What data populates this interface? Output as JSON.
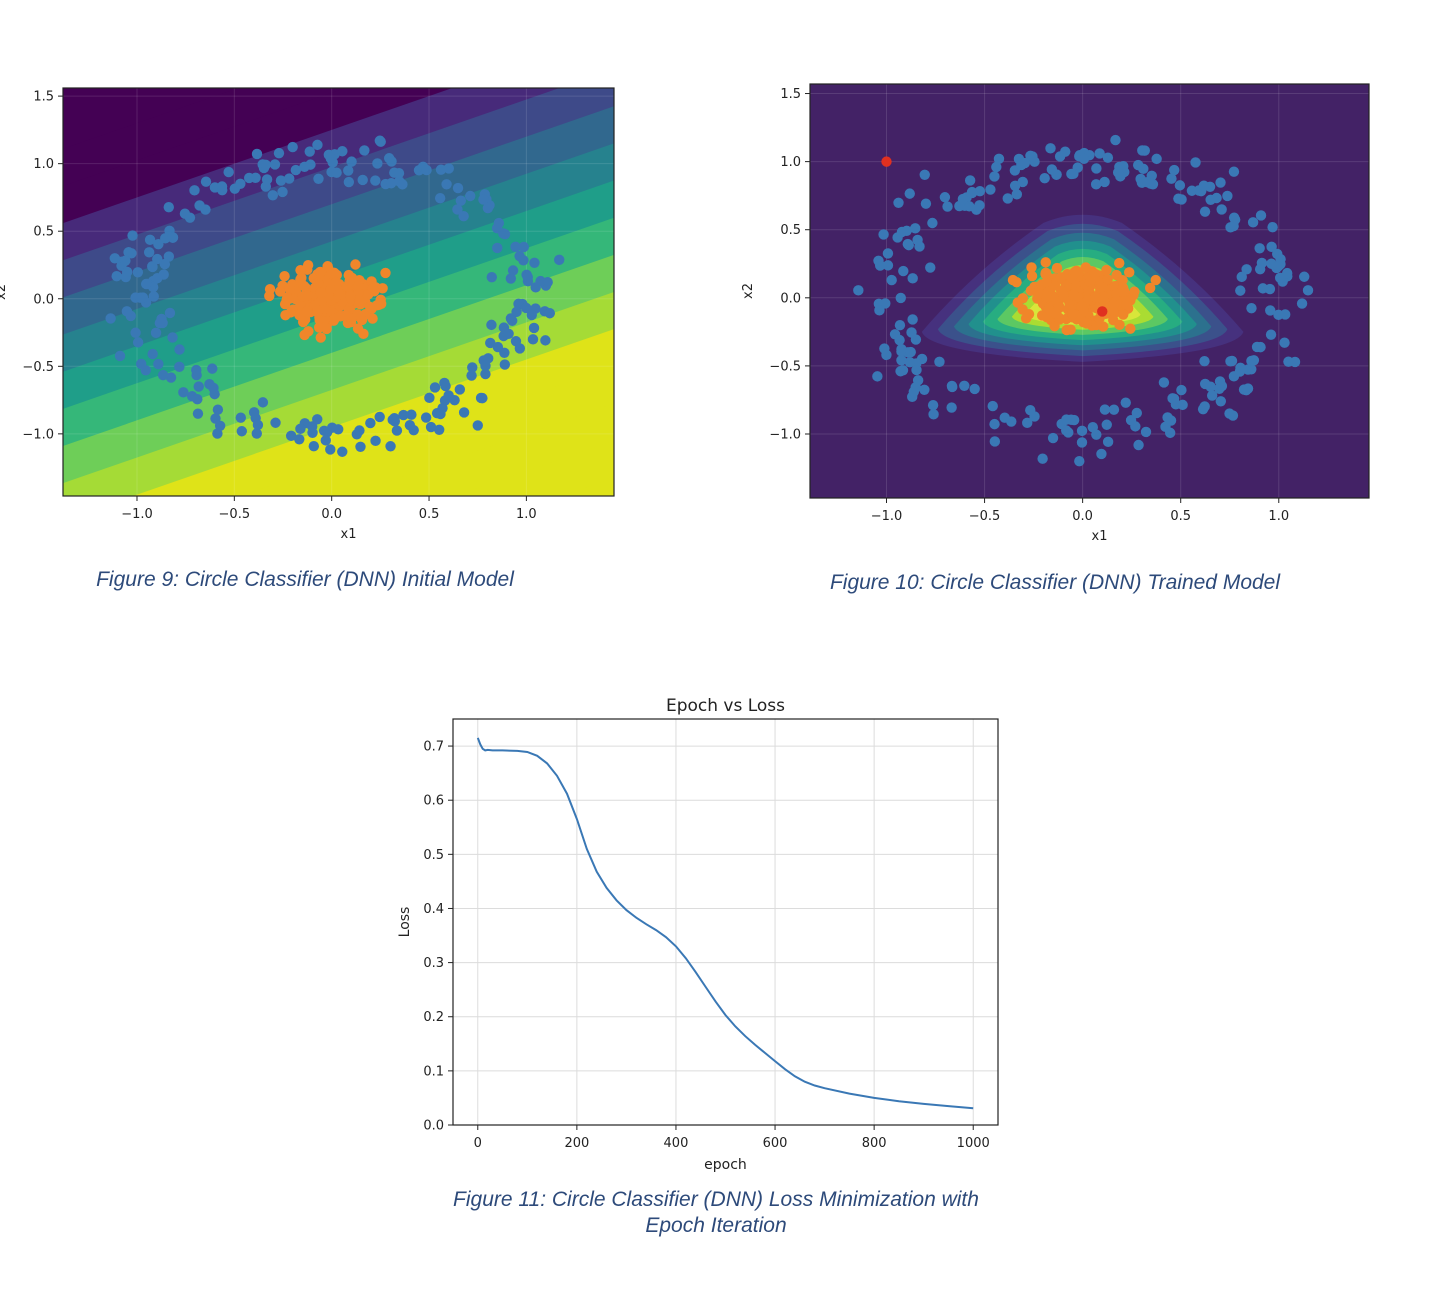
{
  "captions": {
    "fig9": "Figure 9: Circle Classifier (DNN) Initial Model",
    "fig10": "Figure 10: Circle Classifier (DNN) Trained Model",
    "fig11_line1": "Figure 11: Circle Classifier (DNN) Loss Minimization with",
    "fig11_line2": "Epoch Iteration"
  },
  "chart_data": [
    {
      "type": "scatter",
      "title": "",
      "xlabel": "x1",
      "ylabel": "x2",
      "xlim": [
        -1.38,
        1.45
      ],
      "ylim": [
        -1.46,
        1.56
      ],
      "xticks": [
        "−1.0",
        "−0.5",
        "0.0",
        "0.5",
        "1.0"
      ],
      "xtick_values": [
        -1.0,
        -0.5,
        0.0,
        0.5,
        1.0
      ],
      "yticks": [
        "1.5",
        "1.0",
        "0.5",
        "0.0",
        "−0.5",
        "−1.0"
      ],
      "ytick_values": [
        1.5,
        1.0,
        0.5,
        0.0,
        -0.5,
        -1.0
      ],
      "background": "linear decision-boundary contour bands (viridis), increasing toward the lower right",
      "contour_colors": [
        "#440154",
        "#46317e",
        "#3b518b",
        "#2c718e",
        "#21908d",
        "#27ad81",
        "#5cc863",
        "#aadc32",
        "#fde725"
      ],
      "series": [
        {
          "class": 0,
          "description": "outer ring, radius about 1.0, about 250 points",
          "color": "#3a78b5"
        },
        {
          "class": 1,
          "description": "inner cluster, radius about 0.3, about 250 points",
          "color": "#f0862a"
        }
      ]
    },
    {
      "type": "scatter",
      "title": "",
      "xlabel": "x1",
      "ylabel": "x2",
      "xlim": [
        -1.39,
        1.46
      ],
      "ylim": [
        -1.47,
        1.57
      ],
      "xticks": [
        "−1.0",
        "−0.5",
        "0.0",
        "0.5",
        "1.0"
      ],
      "xtick_values": [
        -1.0,
        -0.5,
        0.0,
        0.5,
        1.0
      ],
      "yticks": [
        "1.5",
        "1.0",
        "0.5",
        "0.0",
        "−0.5",
        "−1.0"
      ],
      "ytick_values": [
        1.5,
        1.0,
        0.5,
        0.0,
        -0.5,
        -1.0
      ],
      "background": "rounded-triangle decision region centered near the origin (viridis contours)",
      "contour_colors": [
        "#440154",
        "#46317e",
        "#3b518b",
        "#2c718e",
        "#21908d",
        "#27ad81",
        "#5cc863",
        "#aadc32",
        "#fde725"
      ],
      "highlighted_points": [
        {
          "x": -1.0,
          "y": 1.0,
          "color": "#e03020"
        },
        {
          "x": 0.1,
          "y": -0.1,
          "color": "#e03020"
        }
      ],
      "series": [
        {
          "class": 0,
          "description": "outer ring, radius about 1.0, about 250 points",
          "color": "#3a78b5"
        },
        {
          "class": 1,
          "description": "inner cluster, radius about 0.3, about 250 points",
          "color": "#f0862a"
        }
      ]
    },
    {
      "type": "line",
      "title": "Epoch vs Loss",
      "xlabel": "epoch",
      "ylabel": "Loss",
      "xlim": [
        -50,
        1050
      ],
      "ylim": [
        0,
        0.75
      ],
      "xticks": [
        0,
        200,
        400,
        600,
        800,
        1000
      ],
      "yticks": [
        0.0,
        0.1,
        0.2,
        0.3,
        0.4,
        0.5,
        0.6,
        0.7
      ],
      "grid": true,
      "color": "#3a78b5",
      "x": [
        0,
        5,
        10,
        15,
        20,
        30,
        50,
        80,
        100,
        120,
        140,
        160,
        180,
        200,
        220,
        240,
        260,
        280,
        300,
        320,
        340,
        360,
        380,
        400,
        420,
        440,
        460,
        480,
        500,
        520,
        540,
        560,
        580,
        600,
        620,
        640,
        660,
        680,
        700,
        750,
        800,
        850,
        900,
        950,
        1000
      ],
      "y": [
        0.715,
        0.703,
        0.695,
        0.692,
        0.693,
        0.692,
        0.692,
        0.691,
        0.689,
        0.682,
        0.668,
        0.645,
        0.612,
        0.565,
        0.51,
        0.468,
        0.438,
        0.415,
        0.397,
        0.383,
        0.371,
        0.36,
        0.347,
        0.33,
        0.308,
        0.282,
        0.255,
        0.228,
        0.203,
        0.182,
        0.164,
        0.148,
        0.133,
        0.118,
        0.103,
        0.09,
        0.08,
        0.073,
        0.068,
        0.058,
        0.05,
        0.044,
        0.039,
        0.035,
        0.031
      ]
    }
  ]
}
